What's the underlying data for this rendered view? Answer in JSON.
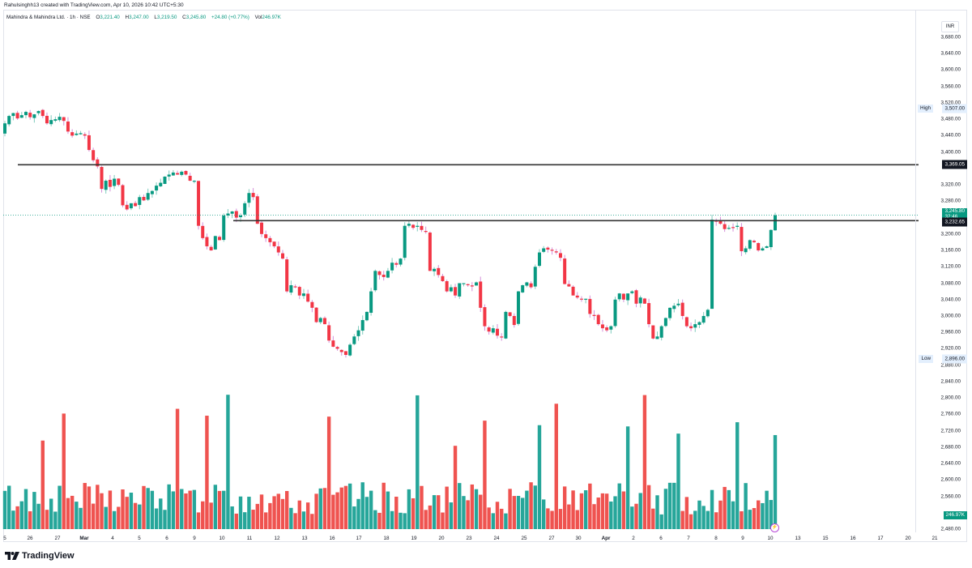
{
  "credit": "Rahulsinghh13 created with TradingView.com, Apr 10, 2026 10:42 UTC+5:30",
  "legend": {
    "symbol": "Mahindra & Mahindra Ltd. · 1h · NSE",
    "open_label": "O",
    "open": "3,221.40",
    "high_label": "H",
    "high": "3,247.00",
    "low_label": "L",
    "low": "3,219.50",
    "close_label": "C",
    "close": "3,245.80",
    "change": "+24.80 (+0.77%)",
    "vol_label": "Vol",
    "volume": "246.97K"
  },
  "axis": {
    "currency": "INR",
    "ticks": [
      "3,680.00",
      "3,640.00",
      "3,600.00",
      "3,560.00",
      "3,520.00",
      "3,480.00",
      "3,440.00",
      "3,400.00",
      "3,320.00",
      "3,280.00",
      "3,200.00",
      "3,160.00",
      "3,120.00",
      "3,080.00",
      "3,040.00",
      "3,000.00",
      "2,960.00",
      "2,920.00",
      "2,880.00",
      "2,840.00",
      "2,800.00",
      "2,760.00",
      "2,720.00",
      "2,680.00",
      "2,640.00",
      "2,600.00",
      "2,560.00",
      "2,480.00"
    ],
    "high_tag": {
      "label": "High",
      "value": "3,507.00"
    },
    "low_tag": {
      "label": "Low",
      "value": "2,896.00"
    },
    "resistance_tag": "3,369.05",
    "support_tag": "3,232.65",
    "price_tag": "3,245.80",
    "countdown": "32:46",
    "volume_tag": "246.97K"
  },
  "x_labels": [
    "5",
    "26",
    "27",
    "Mar",
    "4",
    "5",
    "6",
    "9",
    "10",
    "11",
    "12",
    "13",
    "16",
    "17",
    "18",
    "19",
    "20",
    "23",
    "24",
    "25",
    "27",
    "30",
    "Apr",
    "2",
    "6",
    "7",
    "8",
    "9",
    "10",
    "13",
    "15",
    "16",
    "17",
    "20",
    "21"
  ],
  "brand": "TradingView",
  "colors": {
    "up": "#089981",
    "down": "#f23645",
    "vol_up": "#26a69a",
    "vol_down": "#ef5350",
    "line": "#131722"
  },
  "chart_data": {
    "type": "candlestick",
    "title": "Mahindra & Mahindra Ltd. · 1h · NSE",
    "ylabel": "INR",
    "ylim": [
      2460,
      3700
    ],
    "horizontal_lines": [
      3369.05,
      3232.65
    ],
    "last_price": 3245.8,
    "session_high": 3507.0,
    "session_low": 2896.0,
    "closes": [
      3470,
      3488,
      3495,
      3482,
      3490,
      3498,
      3485,
      3492,
      3500,
      3488,
      3470,
      3478,
      3480,
      3486,
      3476,
      3450,
      3440,
      3445,
      3446,
      3440,
      3405,
      3380,
      3365,
      3310,
      3330,
      3315,
      3335,
      3320,
      3270,
      3260,
      3275,
      3268,
      3290,
      3282,
      3300,
      3305,
      3318,
      3325,
      3340,
      3345,
      3350,
      3345,
      3352,
      3345,
      3330,
      3330,
      3220,
      3190,
      3170,
      3160,
      3195,
      3185,
      3245,
      3250,
      3255,
      3240,
      3245,
      3275,
      3300,
      3290,
      3225,
      3200,
      3190,
      3180,
      3170,
      3155,
      3140,
      3060,
      3075,
      3070,
      3050,
      3055,
      3035,
      3020,
      2985,
      2995,
      2980,
      2940,
      2925,
      2920,
      2912,
      2905,
      2930,
      2950,
      2965,
      2990,
      3010,
      3060,
      3110,
      3100,
      3095,
      3110,
      3130,
      3125,
      3140,
      3220,
      3225,
      3215,
      3220,
      3210,
      3205,
      3110,
      3115,
      3100,
      3085,
      3060,
      3070,
      3050,
      3080,
      3080,
      3075,
      3072,
      3082,
      3020,
      2975,
      2962,
      2970,
      2952,
      2948,
      3010,
      3000,
      2978,
      3060,
      3075,
      3082,
      3070,
      3120,
      3155,
      3165,
      3162,
      3160,
      3155,
      3142,
      3078,
      3072,
      3050,
      3045,
      3040,
      3042,
      3005,
      3000,
      2980,
      2970,
      2965,
      2975,
      3040,
      3055,
      3040,
      3055,
      3060,
      3030,
      3045,
      3030,
      2980,
      2945,
      2950,
      2975,
      2995,
      3020,
      3025,
      3030,
      3000,
      2975,
      2970,
      2980,
      2985,
      3000,
      3015,
      3235,
      3230,
      3225,
      3212,
      3215,
      3216,
      3220,
      3158,
      3165,
      3185,
      3180,
      3160,
      3165,
      3170,
      3210,
      3245.8
    ],
    "volume_note": "Volume histogram shown below price; last bar 246.97K"
  }
}
